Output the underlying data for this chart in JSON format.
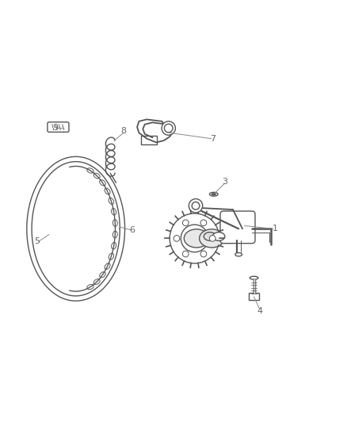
{
  "bg_color": "#ffffff",
  "line_color": "#555555",
  "label_color": "#888888",
  "fig_width": 4.38,
  "fig_height": 5.33,
  "dpi": 100
}
